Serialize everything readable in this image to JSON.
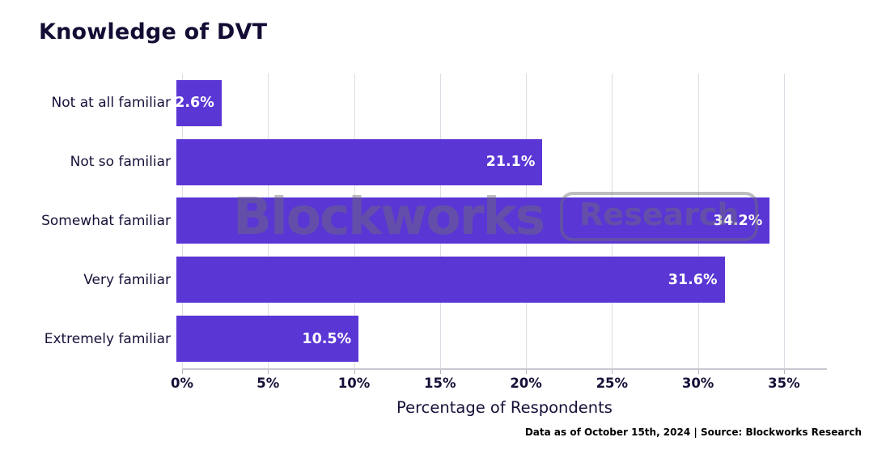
{
  "page": {
    "title": "Knowledge of DVT",
    "footer": "Data as of October 15th, 2024 | Source: Blockworks Research",
    "watermark": {
      "brand": "Blockworks",
      "badge": "Research"
    }
  },
  "chart_data": {
    "type": "bar",
    "orientation": "horizontal",
    "title": "Knowledge of DVT",
    "categories": [
      "Not at all familiar",
      "Not so familiar",
      "Somewhat familiar",
      "Very familiar",
      "Extremely familiar"
    ],
    "values": [
      2.6,
      21.1,
      34.2,
      31.6,
      10.5
    ],
    "value_labels": [
      "2.6%",
      "21.1%",
      "34.2%",
      "31.6%",
      "10.5%"
    ],
    "xlabel": "Percentage of Respondents",
    "ylabel": "",
    "x_ticks": [
      "0%",
      "5%",
      "10%",
      "15%",
      "20%",
      "25%",
      "30%",
      "35%"
    ],
    "x_tick_values": [
      0,
      5,
      10,
      15,
      20,
      25,
      30,
      35
    ],
    "xlim": [
      0,
      37.5
    ],
    "grid": true,
    "legend": false,
    "bar_color": "#5a36d5",
    "bar_label_color": "#ffffff",
    "text_color": "#161038",
    "gridline_color": "#dcdce4"
  }
}
